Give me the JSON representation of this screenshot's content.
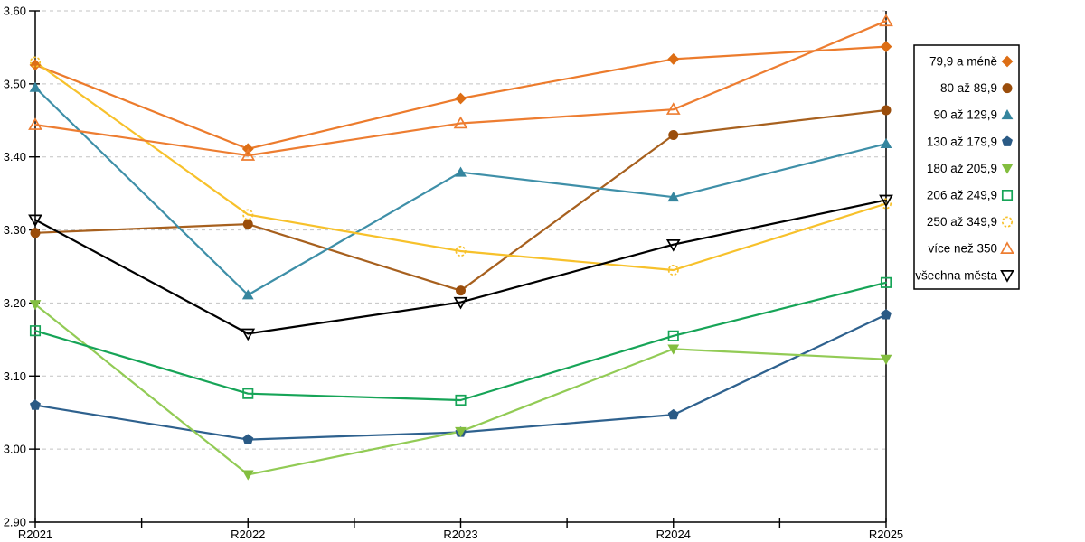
{
  "chart_data": {
    "type": "line",
    "title": "",
    "xlabel": "",
    "ylabel": "",
    "x_categories": [
      "R2021",
      "R2022",
      "R2023",
      "R2024",
      "R2025"
    ],
    "ylim": [
      2.9,
      3.6
    ],
    "ytick_step": 0.1,
    "ytick_labels": [
      "2.90",
      "3.00",
      "3.10",
      "3.20",
      "3.30",
      "3.40",
      "3.50",
      "3.60"
    ],
    "grid": "horizontal-dashed",
    "gridline_color": "#c3c3c3",
    "axis_color": "#000000",
    "legend_position": "right",
    "legend_border_color": "#000000",
    "series": [
      {
        "name": "79,9 a méně",
        "marker": "diamond",
        "style": "filled",
        "color": "#EC7B2C",
        "marker_color": "#DD6E15",
        "values": [
          3.526,
          3.411,
          3.48,
          3.534,
          3.551
        ]
      },
      {
        "name": "80 až 89,9",
        "marker": "circle",
        "style": "filled",
        "color": "#A7601E",
        "marker_color": "#9A4D0B",
        "values": [
          3.296,
          3.308,
          3.217,
          3.43,
          3.464
        ]
      },
      {
        "name": "90 až 129,9",
        "marker": "triangle-up",
        "style": "filled",
        "color": "#3E8FA8",
        "marker_color": "#35859E",
        "values": [
          3.495,
          3.211,
          3.379,
          3.345,
          3.418
        ]
      },
      {
        "name": "130 až 179,9",
        "marker": "pentagon",
        "style": "filled",
        "color": "#2E618E",
        "marker_color": "#2A5A85",
        "values": [
          3.06,
          3.013,
          3.023,
          3.047,
          3.184
        ]
      },
      {
        "name": "180 až 205,9",
        "marker": "triangle-down",
        "style": "filled",
        "color": "#92CB55",
        "marker_color": "#83BE3F",
        "values": [
          3.198,
          2.965,
          3.024,
          3.137,
          3.123
        ]
      },
      {
        "name": "206 až 249,9",
        "marker": "square",
        "style": "hollow",
        "color": "#16A457",
        "marker_color": "#16A457",
        "values": [
          3.162,
          3.076,
          3.067,
          3.155,
          3.228
        ]
      },
      {
        "name": "250 až 349,9",
        "marker": "circle-dashed",
        "style": "hollow",
        "color": "#F7C12B",
        "marker_color": "#F7C12B",
        "values": [
          3.53,
          3.321,
          3.271,
          3.245,
          3.336
        ]
      },
      {
        "name": "více než 350",
        "marker": "triangle-up",
        "style": "hollow",
        "color": "#ED7D31",
        "marker_color": "#ED7D31",
        "values": [
          3.444,
          3.402,
          3.446,
          3.465,
          3.586
        ]
      },
      {
        "name": "všechna města",
        "marker": "triangle-down",
        "style": "hollow",
        "color": "#000000",
        "marker_color": "#000000",
        "values": [
          3.314,
          3.158,
          3.201,
          3.28,
          3.341
        ]
      }
    ]
  }
}
